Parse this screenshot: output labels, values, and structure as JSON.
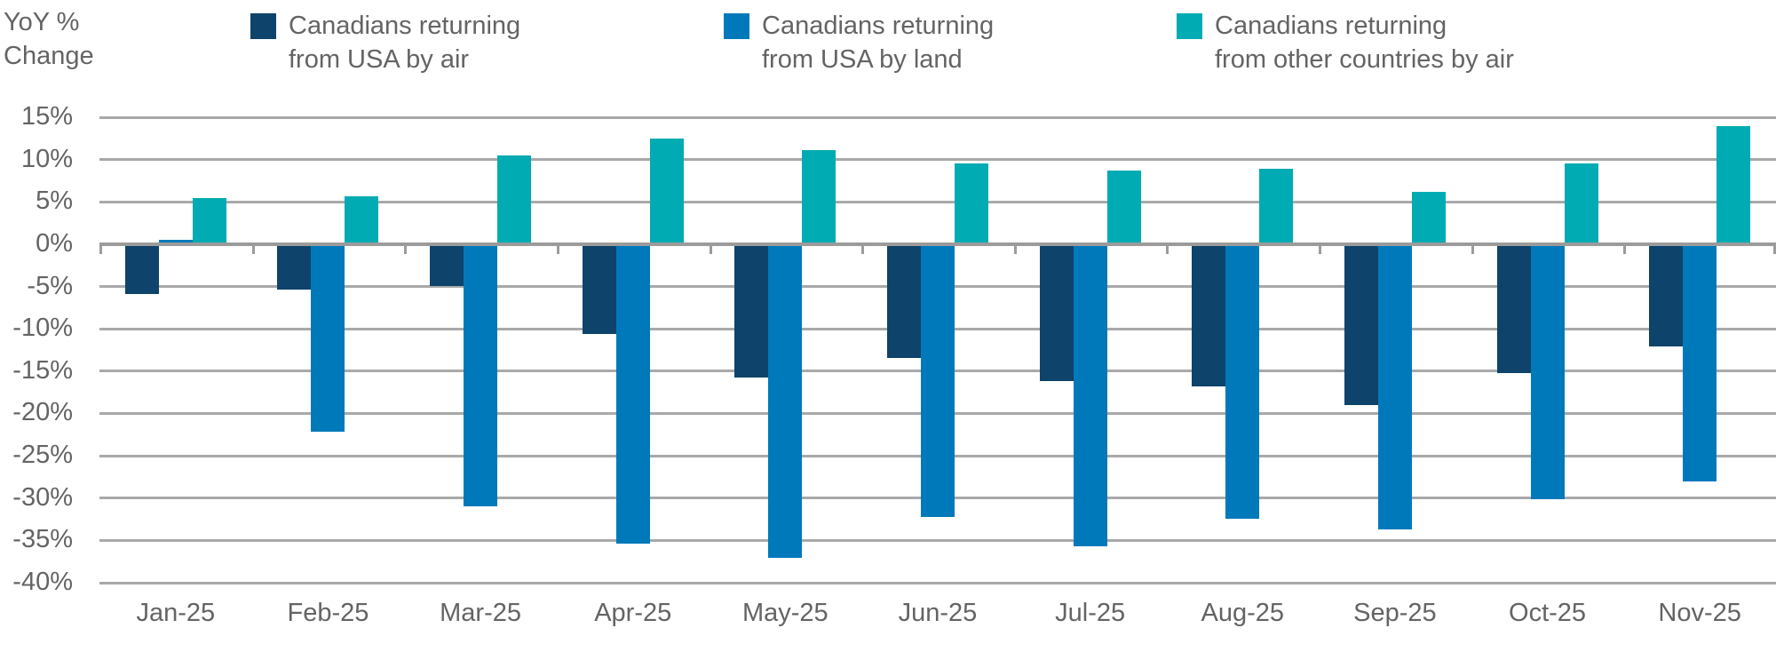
{
  "header": {
    "y_axis_title_line1": "YoY %",
    "y_axis_title_line2": "Change"
  },
  "legend": {
    "items": [
      {
        "label_line1": "Canadians returning",
        "label_line2": "from USA by air",
        "color": "#0e436b"
      },
      {
        "label_line1": "Canadians returning",
        "label_line2": "from USA by land",
        "color": "#0079ba"
      },
      {
        "label_line1": "Canadians returning",
        "label_line2": "from other countries by air",
        "color": "#00abb3"
      }
    ]
  },
  "chart_data": {
    "type": "bar",
    "title": "",
    "ylabel": "YoY % Change",
    "xlabel": "",
    "categories": [
      "Jan-25",
      "Feb-25",
      "Mar-25",
      "Apr-25",
      "May-25",
      "Jun-25",
      "Jul-25",
      "Aug-25",
      "Sep-25",
      "Oct-25",
      "Nov-25"
    ],
    "series": [
      {
        "name": "Canadians returning from USA by air",
        "color": "#0e436b",
        "values": [
          -5.9,
          -5.4,
          -4.9,
          -10.6,
          -15.8,
          -13.4,
          -16.2,
          -16.8,
          -19.0,
          -15.2,
          -12.1
        ]
      },
      {
        "name": "Canadians returning from USA by land",
        "color": "#0079ba",
        "values": [
          0.5,
          -22.2,
          -31.0,
          -35.4,
          -37.1,
          -32.2,
          -35.7,
          -32.4,
          -33.7,
          -30.1,
          -28.0
        ]
      },
      {
        "name": "Canadians returning from other countries by air",
        "color": "#00abb3",
        "values": [
          5.5,
          5.7,
          10.5,
          12.5,
          11.1,
          9.5,
          8.7,
          8.9,
          6.2,
          9.5,
          14.0
        ]
      }
    ],
    "ylim": [
      -40,
      15
    ],
    "ytick_step": 5,
    "ytick_labels": [
      "15%",
      "10%",
      "5%",
      "0%",
      "-5%",
      "-10%",
      "-15%",
      "-20%",
      "-25%",
      "-30%",
      "-35%",
      "-40%"
    ],
    "grid": true,
    "legend_position": "top"
  },
  "colors": {
    "gridline": "#a9a9a9",
    "zero_line": "#9b9b9b",
    "text": "#646464"
  }
}
